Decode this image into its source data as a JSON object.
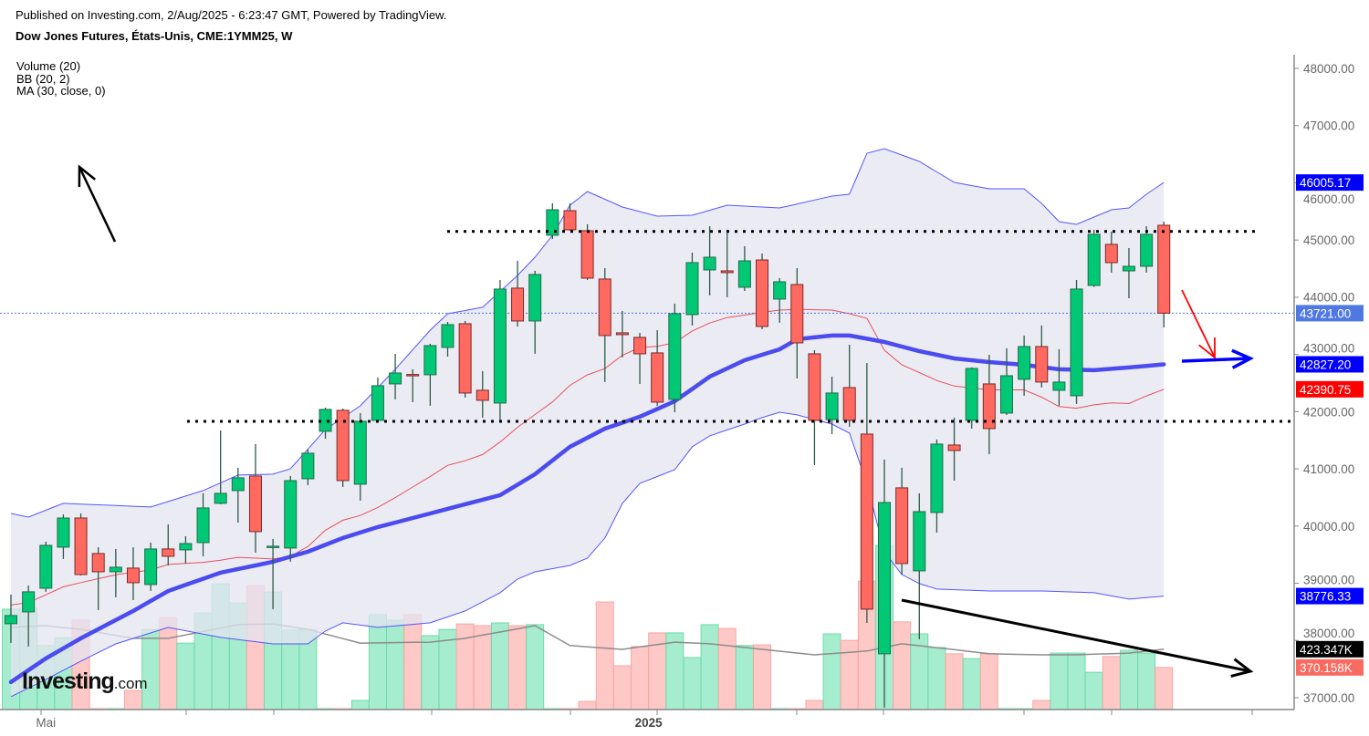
{
  "header": {
    "published": "Published on Investing.com, 2/Aug/2025 - 6:23:47 GMT, Powered by TradingView.",
    "title": "Dow Jones Futures, États-Unis, CME:1YMM25, W"
  },
  "legend": [
    "Volume (20)",
    "BB (20, 2)",
    "MA (30, close, 0)"
  ],
  "logo": {
    "main": "Investing",
    "suffix": ".com"
  },
  "colors": {
    "up": "#00c875",
    "down": "#ff6960",
    "band_fill": "#e4e4f0",
    "band_line": "#5555ff",
    "basis": "#e8505a",
    "ma": "#4b4bef",
    "vol_up": "#a6ecce",
    "vol_down": "#fdc8c6",
    "vol_ma": "#8c8c8c"
  },
  "chart_data": {
    "type": "candlestick",
    "title": "Dow Jones Futures, États-Unis, CME:1YMM25, W",
    "interval": "weekly",
    "x_labels": [
      {
        "index": 3,
        "label": "Mai"
      },
      {
        "index": 37.5,
        "label": "2025"
      }
    ],
    "y_ticks": [
      "48000.00",
      "47000.00",
      "46000.00",
      "45000.00",
      "44000.00",
      "43000.00",
      "42000.00",
      "41000.00",
      "40000.00",
      "39000.00",
      "38000.00",
      "37000.00"
    ],
    "ylim": [
      37000,
      48000
    ],
    "ohlc": [
      [
        38293,
        38803,
        37958,
        38436
      ],
      [
        38500,
        38962,
        37894,
        38851
      ],
      [
        38914,
        39727,
        38851,
        39663
      ],
      [
        39631,
        40205,
        39425,
        40141
      ],
      [
        40141,
        40221,
        39137,
        39153
      ],
      [
        39520,
        39631,
        38532,
        39201
      ],
      [
        39201,
        39600,
        38755,
        39281
      ],
      [
        39265,
        39631,
        38707,
        39010
      ],
      [
        38978,
        39712,
        38867,
        39600
      ],
      [
        39600,
        40030,
        39313,
        39472
      ],
      [
        39584,
        39823,
        39345,
        39695
      ],
      [
        39711,
        40572,
        39472,
        40317
      ],
      [
        40397,
        41672,
        40381,
        40572
      ],
      [
        40620,
        41019,
        40061,
        40843
      ],
      [
        40875,
        41433,
        39536,
        39903
      ],
      [
        39632,
        39775,
        38547,
        39648
      ],
      [
        39616,
        40875,
        39377,
        40795
      ],
      [
        40827,
        41338,
        40716,
        41274
      ],
      [
        41656,
        42071,
        41528,
        42039
      ],
      [
        42023,
        42055,
        40684,
        40795
      ],
      [
        40732,
        41975,
        40445,
        41831
      ],
      [
        41848,
        42597,
        41816,
        42453
      ],
      [
        42485,
        43011,
        42214,
        42676
      ],
      [
        42650,
        42740,
        42166,
        42640
      ],
      [
        42645,
        43186,
        42103,
        43154
      ],
      [
        43123,
        43569,
        42963,
        43521
      ],
      [
        43537,
        43585,
        42246,
        42326
      ],
      [
        42374,
        42708,
        41895,
        42198
      ],
      [
        42150,
        44302,
        41831,
        44143
      ],
      [
        44159,
        44637,
        43489,
        43585
      ],
      [
        43585,
        44462,
        43011,
        44398
      ],
      [
        45083,
        45641,
        45019,
        45529
      ],
      [
        45513,
        45641,
        45163,
        45179
      ],
      [
        45163,
        45275,
        44302,
        44334
      ],
      [
        44318,
        44509,
        42517,
        43330
      ],
      [
        43378,
        43760,
        42947,
        43346
      ],
      [
        43298,
        43378,
        42485,
        43011
      ],
      [
        43027,
        43425,
        42103,
        42166
      ],
      [
        42214,
        43888,
        41991,
        43712
      ],
      [
        43696,
        44780,
        43505,
        44605
      ],
      [
        44477,
        45243,
        44031,
        44700
      ],
      [
        44461,
        45179,
        44000,
        44430
      ],
      [
        44174,
        44892,
        44110,
        44636
      ],
      [
        44652,
        44764,
        43441,
        43489
      ],
      [
        43967,
        44334,
        43553,
        44270
      ],
      [
        44222,
        44509,
        42580,
        43202
      ],
      [
        43011,
        43075,
        41066,
        41848
      ],
      [
        41863,
        42612,
        41608,
        42326
      ],
      [
        42421,
        43170,
        41735,
        41848
      ],
      [
        41608,
        42851,
        38308,
        38548
      ],
      [
        37767,
        41162,
        36826,
        40412
      ],
      [
        40668,
        41019,
        39153,
        39345
      ],
      [
        39217,
        40572,
        38022,
        40253
      ],
      [
        40237,
        41513,
        39886,
        41433
      ],
      [
        41417,
        41895,
        40795,
        41321
      ],
      [
        41848,
        42772,
        41704,
        42756
      ],
      [
        42485,
        42995,
        41257,
        41704
      ],
      [
        41975,
        43107,
        41943,
        42628
      ],
      [
        42565,
        43330,
        42278,
        43138
      ],
      [
        43138,
        43505,
        42422,
        42517
      ],
      [
        42373,
        43091,
        42103,
        42517
      ],
      [
        42278,
        44302,
        42135,
        44143
      ],
      [
        44206,
        45179,
        44180,
        45099
      ],
      [
        44924,
        45147,
        44430,
        44605
      ],
      [
        44461,
        44860,
        43983,
        44541
      ],
      [
        44541,
        45243,
        44430,
        45099
      ],
      [
        45258,
        45322,
        43473,
        43721
      ]
    ],
    "volume_k": [
      540,
      543,
      434,
      457,
      508,
      250,
      250,
      303,
      481,
      516,
      441,
      529,
      614,
      558,
      609,
      590,
      479,
      481,
      250,
      250,
      274,
      524,
      508,
      524,
      463,
      481,
      497,
      492,
      500,
      492,
      495,
      250,
      250,
      271,
      561,
      375,
      431,
      471,
      471,
      399,
      495,
      484,
      434,
      436,
      250,
      250,
      274,
      468,
      449,
      622,
      726,
      503,
      468,
      428,
      410,
      396,
      410,
      250,
      250,
      274,
      412,
      412,
      356,
      402,
      420,
      412,
      370.158
    ],
    "bb_upper": [
      [
        1,
        40221
      ],
      [
        2,
        40157
      ],
      [
        4,
        40397
      ],
      [
        9,
        40333
      ],
      [
        12,
        40620
      ],
      [
        14,
        40891
      ],
      [
        16,
        40907
      ],
      [
        17,
        41002
      ],
      [
        19,
        41688
      ],
      [
        21,
        42102
      ],
      [
        23,
        42740
      ],
      [
        25,
        43425
      ],
      [
        26,
        43712
      ],
      [
        28,
        43824
      ],
      [
        30,
        44381
      ],
      [
        31,
        44700
      ],
      [
        32,
        45083
      ],
      [
        33,
        45609
      ],
      [
        34,
        45848
      ],
      [
        36,
        45577
      ],
      [
        38,
        45418
      ],
      [
        40,
        45434
      ],
      [
        42,
        45609
      ],
      [
        45,
        45561
      ],
      [
        48,
        45768
      ],
      [
        49,
        45800
      ],
      [
        50,
        46518
      ],
      [
        51,
        46597
      ],
      [
        53,
        46374
      ],
      [
        55,
        46007
      ],
      [
        57,
        45896
      ],
      [
        59,
        45896
      ],
      [
        60,
        45641
      ],
      [
        61,
        45322
      ],
      [
        62,
        45274
      ],
      [
        64,
        45529
      ],
      [
        65,
        45561
      ],
      [
        66,
        45800
      ],
      [
        67,
        46005.17
      ]
    ],
    "bb_lower": [
      [
        1,
        37017
      ],
      [
        3,
        37320
      ],
      [
        5,
        37640
      ],
      [
        7,
        37940
      ],
      [
        10,
        38229
      ],
      [
        13,
        38054
      ],
      [
        16,
        37941
      ],
      [
        18,
        37941
      ],
      [
        19,
        38165
      ],
      [
        20,
        38309
      ],
      [
        22,
        38229
      ],
      [
        25,
        38309
      ],
      [
        27,
        38516
      ],
      [
        29,
        38835
      ],
      [
        30,
        39074
      ],
      [
        31,
        39200
      ],
      [
        33,
        39312
      ],
      [
        34,
        39440
      ],
      [
        35,
        39791
      ],
      [
        36,
        40396
      ],
      [
        37,
        40746
      ],
      [
        39,
        40986
      ],
      [
        40,
        41385
      ],
      [
        41,
        41577
      ],
      [
        43,
        41783
      ],
      [
        44,
        41895
      ],
      [
        45,
        41990
      ],
      [
        46,
        41943
      ],
      [
        48,
        41783
      ],
      [
        49,
        41624
      ],
      [
        50,
        40746
      ],
      [
        51,
        39550
      ],
      [
        52,
        39153
      ],
      [
        53,
        38994
      ],
      [
        54,
        38898
      ],
      [
        57,
        38866
      ],
      [
        60,
        38866
      ],
      [
        63,
        38835
      ],
      [
        65,
        38723
      ],
      [
        67,
        38776.33
      ]
    ],
    "ma30": [
      [
        1,
        37272
      ],
      [
        3,
        37687
      ],
      [
        5,
        38038
      ],
      [
        8,
        38516
      ],
      [
        10,
        38866
      ],
      [
        13,
        39185
      ],
      [
        16,
        39376
      ],
      [
        18,
        39552
      ],
      [
        20,
        39791
      ],
      [
        22,
        39982
      ],
      [
        25,
        40221
      ],
      [
        27,
        40381
      ],
      [
        29,
        40540
      ],
      [
        31,
        40907
      ],
      [
        33,
        41385
      ],
      [
        35,
        41703
      ],
      [
        37,
        41911
      ],
      [
        39,
        42182
      ],
      [
        41,
        42612
      ],
      [
        43,
        42899
      ],
      [
        45,
        43090
      ],
      [
        46,
        43266
      ],
      [
        48,
        43330
      ],
      [
        49,
        43330
      ],
      [
        51,
        43218
      ],
      [
        53,
        43058
      ],
      [
        55,
        42931
      ],
      [
        57,
        42867
      ],
      [
        59,
        42819
      ],
      [
        61,
        42740
      ],
      [
        63,
        42724
      ],
      [
        65,
        42772
      ],
      [
        67,
        42827.2
      ]
    ],
    "volume_ma_k": [
      [
        1,
        487
      ],
      [
        3,
        492
      ],
      [
        5,
        481
      ],
      [
        8,
        455
      ],
      [
        10,
        455
      ],
      [
        14,
        495
      ],
      [
        16,
        497
      ],
      [
        18,
        481
      ],
      [
        21,
        441
      ],
      [
        25,
        444
      ],
      [
        27,
        455
      ],
      [
        31,
        492
      ],
      [
        33,
        434
      ],
      [
        36,
        423
      ],
      [
        39,
        444
      ],
      [
        41,
        439
      ],
      [
        44,
        423
      ],
      [
        47,
        407
      ],
      [
        50,
        418
      ],
      [
        52,
        439
      ],
      [
        54,
        428
      ],
      [
        57,
        410
      ],
      [
        60,
        407
      ],
      [
        62,
        407
      ],
      [
        65,
        412
      ],
      [
        67,
        423.347
      ]
    ],
    "levels": [
      45150,
      41830
    ],
    "last_price": 43721,
    "price_tags": [
      {
        "text": "46005.17",
        "value": 46005.17,
        "bg": "#0000ff"
      },
      {
        "text": "43721.00",
        "value": 43721,
        "bg": "#4f78e3"
      },
      {
        "text": "42827.20",
        "value": 42827.2,
        "bg": "#0000ff"
      },
      {
        "text": "42390.75",
        "value": 42390.75,
        "bg": "#ff0000"
      },
      {
        "text": "38776.33",
        "value": 38776.33,
        "bg": "#0000ff"
      }
    ],
    "volume_tags": [
      {
        "text": "423.347K",
        "value": 423.347,
        "bg": "#000000"
      },
      {
        "text": "370.158K",
        "value": 370.158,
        "bg": "#f96a60"
      }
    ]
  }
}
